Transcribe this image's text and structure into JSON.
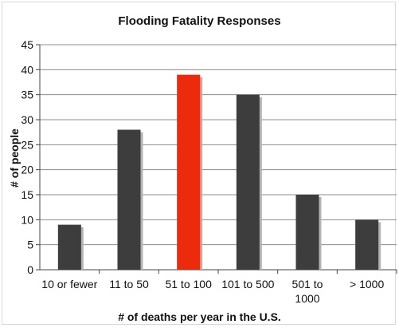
{
  "chart_data": {
    "type": "bar",
    "title": "Flooding Fatality Responses",
    "xlabel": "# of deaths per year in the U.S.",
    "ylabel": "# of people",
    "categories": [
      "10 or fewer",
      "11 to 50",
      "51 to 100",
      "101 to 500",
      "501 to 1000",
      "> 1000"
    ],
    "values": [
      9,
      28,
      39,
      35,
      15,
      10
    ],
    "highlight_index": 2,
    "ylim": [
      0,
      45
    ],
    "yticks": [
      0,
      5,
      10,
      15,
      20,
      25,
      30,
      35,
      40,
      45
    ],
    "grid": true,
    "legend": "none",
    "colors": {
      "bar": "#3d3d3d",
      "highlight": "#ee2a0c",
      "shadow": "#b3b3b3",
      "grid": "#8c8c8c",
      "axis": "#444444"
    }
  }
}
